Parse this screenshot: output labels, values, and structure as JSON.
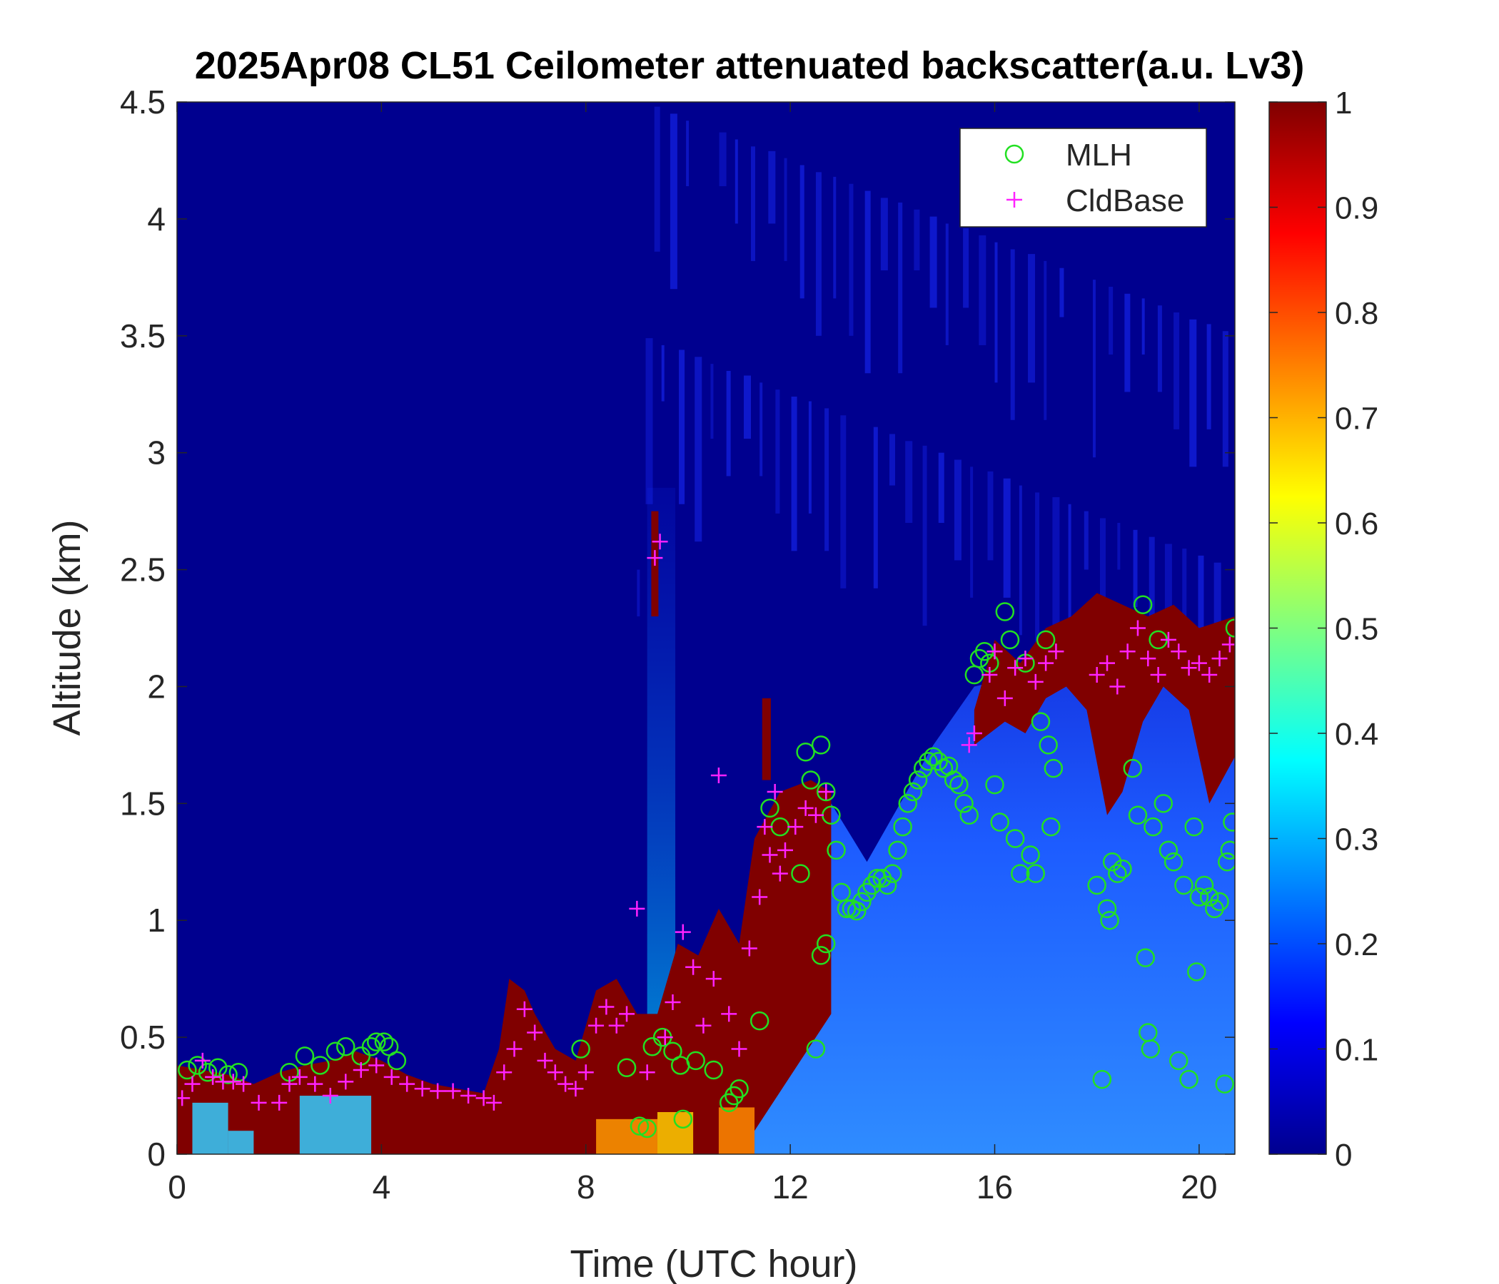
{
  "chart_data": {
    "type": "heatmap",
    "title": "2025Apr08 CL51 Ceilometer attenuated backscatter(a.u. Lv3)",
    "xlabel": "Time (UTC hour)",
    "ylabel": "Altitude (km)",
    "xlim": [
      0,
      20.7
    ],
    "ylim": [
      0,
      4.5
    ],
    "xticks": [
      "0",
      "4",
      "8",
      "12",
      "16",
      "20"
    ],
    "yticks": [
      "0",
      "0.5",
      "1",
      "1.5",
      "2",
      "2.5",
      "3",
      "3.5",
      "4",
      "4.5"
    ],
    "colorbar": {
      "colormap": "jet",
      "range": [
        0,
        1
      ],
      "ticks": [
        "0",
        "0.1",
        "0.2",
        "0.3",
        "0.4",
        "0.5",
        "0.6",
        "0.7",
        "0.8",
        "0.9",
        "1"
      ]
    },
    "legend": {
      "position": "top-right",
      "entries": [
        "MLH",
        "CldBase"
      ]
    },
    "series": [
      {
        "name": "MLH",
        "marker": "circle",
        "color": "#22e022",
        "points": [
          [
            0.2,
            0.36
          ],
          [
            0.4,
            0.38
          ],
          [
            0.6,
            0.35
          ],
          [
            0.8,
            0.37
          ],
          [
            1.0,
            0.34
          ],
          [
            1.2,
            0.35
          ],
          [
            2.2,
            0.35
          ],
          [
            2.5,
            0.42
          ],
          [
            2.8,
            0.38
          ],
          [
            3.1,
            0.44
          ],
          [
            3.3,
            0.46
          ],
          [
            3.6,
            0.42
          ],
          [
            3.8,
            0.46
          ],
          [
            3.9,
            0.48
          ],
          [
            4.05,
            0.48
          ],
          [
            4.15,
            0.46
          ],
          [
            4.3,
            0.4
          ],
          [
            7.9,
            0.45
          ],
          [
            8.8,
            0.37
          ],
          [
            9.05,
            0.12
          ],
          [
            9.2,
            0.11
          ],
          [
            9.3,
            0.46
          ],
          [
            9.5,
            0.5
          ],
          [
            9.7,
            0.44
          ],
          [
            9.85,
            0.38
          ],
          [
            9.9,
            0.15
          ],
          [
            10.15,
            0.4
          ],
          [
            10.5,
            0.36
          ],
          [
            10.8,
            0.22
          ],
          [
            10.9,
            0.25
          ],
          [
            11.0,
            0.28
          ],
          [
            11.4,
            0.57
          ],
          [
            11.6,
            1.48
          ],
          [
            11.8,
            1.4
          ],
          [
            12.2,
            1.2
          ],
          [
            12.3,
            1.72
          ],
          [
            12.4,
            1.6
          ],
          [
            12.5,
            0.45
          ],
          [
            12.6,
            1.75
          ],
          [
            12.7,
            1.55
          ],
          [
            12.8,
            1.45
          ],
          [
            12.6,
            0.85
          ],
          [
            12.7,
            0.9
          ],
          [
            12.9,
            1.3
          ],
          [
            13.0,
            1.12
          ],
          [
            13.1,
            1.05
          ],
          [
            13.2,
            1.05
          ],
          [
            13.3,
            1.04
          ],
          [
            13.4,
            1.08
          ],
          [
            13.5,
            1.12
          ],
          [
            13.6,
            1.15
          ],
          [
            13.7,
            1.18
          ],
          [
            13.8,
            1.18
          ],
          [
            13.9,
            1.15
          ],
          [
            14.0,
            1.2
          ],
          [
            14.1,
            1.3
          ],
          [
            14.2,
            1.4
          ],
          [
            14.3,
            1.5
          ],
          [
            14.4,
            1.55
          ],
          [
            14.5,
            1.6
          ],
          [
            14.6,
            1.65
          ],
          [
            14.7,
            1.68
          ],
          [
            14.8,
            1.7
          ],
          [
            14.9,
            1.68
          ],
          [
            15.0,
            1.65
          ],
          [
            15.1,
            1.66
          ],
          [
            15.2,
            1.6
          ],
          [
            15.3,
            1.58
          ],
          [
            15.4,
            1.5
          ],
          [
            15.5,
            1.45
          ],
          [
            15.6,
            2.05
          ],
          [
            15.7,
            2.12
          ],
          [
            15.8,
            2.15
          ],
          [
            15.9,
            2.1
          ],
          [
            16.0,
            1.58
          ],
          [
            16.1,
            1.42
          ],
          [
            16.2,
            2.32
          ],
          [
            16.3,
            2.2
          ],
          [
            16.4,
            1.35
          ],
          [
            16.5,
            1.2
          ],
          [
            16.6,
            2.1
          ],
          [
            16.7,
            1.28
          ],
          [
            16.8,
            1.2
          ],
          [
            16.9,
            1.85
          ],
          [
            17.0,
            2.2
          ],
          [
            17.05,
            1.75
          ],
          [
            17.1,
            1.4
          ],
          [
            17.15,
            1.65
          ],
          [
            18.0,
            1.15
          ],
          [
            18.1,
            0.32
          ],
          [
            18.2,
            1.05
          ],
          [
            18.25,
            1.0
          ],
          [
            18.3,
            1.25
          ],
          [
            18.4,
            1.2
          ],
          [
            18.5,
            1.22
          ],
          [
            18.7,
            1.65
          ],
          [
            18.8,
            1.45
          ],
          [
            18.9,
            2.35
          ],
          [
            18.95,
            0.84
          ],
          [
            19.0,
            0.52
          ],
          [
            19.05,
            0.45
          ],
          [
            19.1,
            1.4
          ],
          [
            19.2,
            2.2
          ],
          [
            19.3,
            1.5
          ],
          [
            19.4,
            1.3
          ],
          [
            19.5,
            1.25
          ],
          [
            19.6,
            0.4
          ],
          [
            19.7,
            1.15
          ],
          [
            19.8,
            0.32
          ],
          [
            19.9,
            1.4
          ],
          [
            19.95,
            0.78
          ],
          [
            20.0,
            1.1
          ],
          [
            20.1,
            1.15
          ],
          [
            20.2,
            1.1
          ],
          [
            20.3,
            1.05
          ],
          [
            20.4,
            1.08
          ],
          [
            20.5,
            0.3
          ],
          [
            20.55,
            1.25
          ],
          [
            20.6,
            1.3
          ],
          [
            20.65,
            1.42
          ],
          [
            20.7,
            2.25
          ]
        ]
      },
      {
        "name": "CldBase",
        "marker": "plus",
        "color": "#ff22ff",
        "points": [
          [
            0.1,
            0.24
          ],
          [
            0.3,
            0.3
          ],
          [
            0.5,
            0.4
          ],
          [
            0.7,
            0.33
          ],
          [
            0.9,
            0.31
          ],
          [
            1.1,
            0.31
          ],
          [
            1.3,
            0.3
          ],
          [
            1.6,
            0.22
          ],
          [
            2.0,
            0.22
          ],
          [
            2.2,
            0.3
          ],
          [
            2.4,
            0.33
          ],
          [
            2.7,
            0.3
          ],
          [
            3.0,
            0.25
          ],
          [
            3.3,
            0.31
          ],
          [
            3.6,
            0.36
          ],
          [
            3.9,
            0.38
          ],
          [
            4.2,
            0.33
          ],
          [
            4.5,
            0.3
          ],
          [
            4.8,
            0.28
          ],
          [
            5.1,
            0.27
          ],
          [
            5.4,
            0.27
          ],
          [
            5.7,
            0.25
          ],
          [
            6.0,
            0.24
          ],
          [
            6.2,
            0.22
          ],
          [
            6.4,
            0.35
          ],
          [
            6.6,
            0.45
          ],
          [
            6.8,
            0.62
          ],
          [
            7.0,
            0.52
          ],
          [
            7.2,
            0.4
          ],
          [
            7.4,
            0.35
          ],
          [
            7.6,
            0.3
          ],
          [
            7.8,
            0.28
          ],
          [
            8.0,
            0.35
          ],
          [
            8.2,
            0.55
          ],
          [
            8.4,
            0.63
          ],
          [
            8.6,
            0.55
          ],
          [
            8.8,
            0.6
          ],
          [
            9.0,
            1.05
          ],
          [
            9.2,
            0.35
          ],
          [
            9.35,
            2.55
          ],
          [
            9.45,
            2.62
          ],
          [
            9.55,
            0.5
          ],
          [
            9.7,
            0.65
          ],
          [
            9.9,
            0.95
          ],
          [
            10.1,
            0.8
          ],
          [
            10.3,
            0.55
          ],
          [
            10.5,
            0.75
          ],
          [
            10.6,
            1.62
          ],
          [
            10.8,
            0.6
          ],
          [
            11.0,
            0.45
          ],
          [
            11.2,
            0.88
          ],
          [
            11.4,
            1.1
          ],
          [
            11.5,
            1.4
          ],
          [
            11.6,
            1.28
          ],
          [
            11.7,
            1.55
          ],
          [
            11.8,
            1.2
          ],
          [
            11.9,
            1.3
          ],
          [
            12.1,
            1.4
          ],
          [
            12.3,
            1.48
          ],
          [
            12.5,
            1.45
          ],
          [
            12.7,
            1.55
          ],
          [
            15.5,
            1.75
          ],
          [
            15.6,
            1.8
          ],
          [
            15.9,
            2.05
          ],
          [
            16.0,
            2.15
          ],
          [
            16.2,
            1.95
          ],
          [
            16.4,
            2.08
          ],
          [
            16.6,
            2.12
          ],
          [
            16.8,
            2.02
          ],
          [
            17.0,
            2.1
          ],
          [
            17.2,
            2.15
          ],
          [
            18.0,
            2.05
          ],
          [
            18.2,
            2.1
          ],
          [
            18.4,
            2.0
          ],
          [
            18.6,
            2.15
          ],
          [
            18.8,
            2.25
          ],
          [
            19.0,
            2.12
          ],
          [
            19.2,
            2.05
          ],
          [
            19.4,
            2.2
          ],
          [
            19.6,
            2.15
          ],
          [
            19.8,
            2.08
          ],
          [
            20.0,
            2.1
          ],
          [
            20.2,
            2.05
          ],
          [
            20.4,
            2.12
          ],
          [
            20.6,
            2.18
          ]
        ]
      }
    ]
  }
}
